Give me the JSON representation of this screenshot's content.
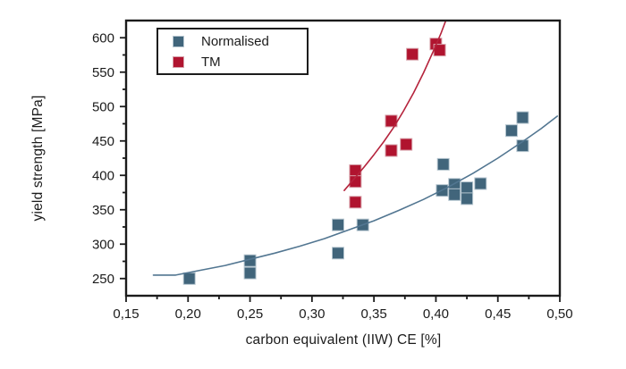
{
  "chart_data": {
    "type": "scatter",
    "title": "",
    "xlabel": "carbon equivalent (IIW) CE [%]",
    "ylabel": "yield strength [MPa]",
    "xlim": [
      0.15,
      0.5
    ],
    "ylim": [
      225,
      625
    ],
    "grid": false,
    "decimal_separator": ",",
    "x_ticks": [
      {
        "v": 0.15,
        "label": "0,15"
      },
      {
        "v": 0.2,
        "label": "0,20"
      },
      {
        "v": 0.25,
        "label": "0,25"
      },
      {
        "v": 0.3,
        "label": "0,30"
      },
      {
        "v": 0.35,
        "label": "0,35"
      },
      {
        "v": 0.4,
        "label": "0,40"
      },
      {
        "v": 0.45,
        "label": "0,45"
      },
      {
        "v": 0.5,
        "label": "0,50"
      }
    ],
    "x_minor_ticks": [
      0.175,
      0.225,
      0.275,
      0.325,
      0.375,
      0.425,
      0.475
    ],
    "y_ticks": [
      {
        "v": 250,
        "label": "250"
      },
      {
        "v": 300,
        "label": "300"
      },
      {
        "v": 350,
        "label": "350"
      },
      {
        "v": 400,
        "label": "400"
      },
      {
        "v": 450,
        "label": "450"
      },
      {
        "v": 500,
        "label": "500"
      },
      {
        "v": 550,
        "label": "550"
      },
      {
        "v": 600,
        "label": "600"
      }
    ],
    "y_minor_ticks": [
      275,
      325,
      375,
      425,
      475,
      525,
      575
    ],
    "legend": {
      "position": "top-left-inside",
      "items": [
        "Normalised",
        "TM"
      ]
    },
    "axis_color": "#1b1b1b",
    "series": [
      {
        "name": "Normalised",
        "marker": "square",
        "marker_size": 13,
        "fill": "#41657b",
        "edge": "#b6c6d0",
        "points": [
          [
            0.201,
            250
          ],
          [
            0.25,
            276
          ],
          [
            0.25,
            258
          ],
          [
            0.321,
            328
          ],
          [
            0.321,
            287
          ],
          [
            0.341,
            328
          ],
          [
            0.406,
            416
          ],
          [
            0.405,
            378
          ],
          [
            0.415,
            387
          ],
          [
            0.415,
            372
          ],
          [
            0.425,
            382
          ],
          [
            0.425,
            366
          ],
          [
            0.436,
            388
          ],
          [
            0.461,
            465
          ],
          [
            0.47,
            484
          ],
          [
            0.47,
            443
          ]
        ]
      },
      {
        "name": "TM",
        "marker": "square",
        "marker_size": 13,
        "fill": "#b0142f",
        "edge": "#d7a2ab",
        "points": [
          [
            0.335,
            407
          ],
          [
            0.335,
            391
          ],
          [
            0.335,
            361
          ],
          [
            0.364,
            479
          ],
          [
            0.364,
            436
          ],
          [
            0.376,
            445
          ],
          [
            0.381,
            576
          ],
          [
            0.4,
            591
          ],
          [
            0.403,
            582
          ]
        ]
      }
    ],
    "fit_curves": [
      {
        "series": "Normalised",
        "color": "#527691",
        "width": 1.6,
        "points": [
          [
            0.172,
            255
          ],
          [
            0.19,
            255
          ],
          [
            0.21,
            262
          ],
          [
            0.23,
            269
          ],
          [
            0.25,
            278
          ],
          [
            0.27,
            287
          ],
          [
            0.29,
            297
          ],
          [
            0.31,
            308
          ],
          [
            0.33,
            321
          ],
          [
            0.35,
            334
          ],
          [
            0.37,
            349
          ],
          [
            0.39,
            365
          ],
          [
            0.41,
            383
          ],
          [
            0.43,
            403
          ],
          [
            0.45,
            425
          ],
          [
            0.47,
            449
          ],
          [
            0.485,
            468
          ],
          [
            0.498,
            486
          ]
        ]
      },
      {
        "series": "TM",
        "color": "#b5233c",
        "width": 1.6,
        "points": [
          [
            0.326,
            378
          ],
          [
            0.334,
            395
          ],
          [
            0.342,
            412
          ],
          [
            0.35,
            430
          ],
          [
            0.358,
            449
          ],
          [
            0.366,
            470
          ],
          [
            0.374,
            494
          ],
          [
            0.382,
            520
          ],
          [
            0.39,
            549
          ],
          [
            0.398,
            581
          ],
          [
            0.404,
            606
          ],
          [
            0.408,
            625
          ]
        ]
      }
    ]
  }
}
